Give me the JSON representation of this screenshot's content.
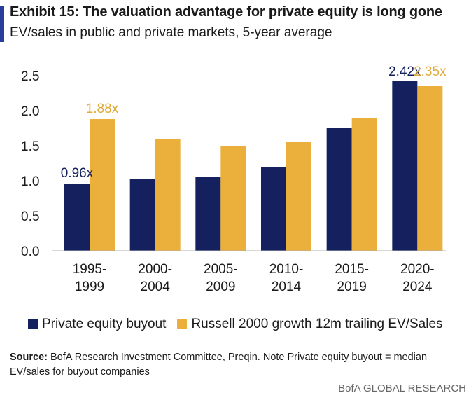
{
  "header": {
    "title": "Exhibit 15: The valuation advantage for private equity is long gone",
    "subtitle": "EV/sales in public and private markets, 5-year average"
  },
  "colors": {
    "accent": "#2b3d9b",
    "private_equity": "#14215e",
    "russell": "#ebb03b",
    "label_pe": "#14215e",
    "label_russell": "#e0a93a"
  },
  "chart_data": {
    "type": "bar",
    "categories": [
      [
        "1995-",
        "1999"
      ],
      [
        "2000-",
        "2004"
      ],
      [
        "2005-",
        "2009"
      ],
      [
        "2010-",
        "2014"
      ],
      [
        "2015-",
        "2019"
      ],
      [
        "2020-",
        "2024"
      ]
    ],
    "series": [
      {
        "name": "Private equity buyout",
        "values": [
          0.96,
          1.03,
          1.05,
          1.19,
          1.75,
          2.42
        ]
      },
      {
        "name": "Russell 2000 growth 12m trailing EV/Sales",
        "values": [
          1.88,
          1.6,
          1.5,
          1.56,
          1.9,
          2.35
        ]
      }
    ],
    "data_labels": [
      {
        "series": 0,
        "index": 0,
        "text": "0.96x"
      },
      {
        "series": 1,
        "index": 0,
        "text": "1.88x"
      },
      {
        "series": 0,
        "index": 5,
        "text": "2.42x"
      },
      {
        "series": 1,
        "index": 5,
        "text": "2.35x"
      }
    ],
    "ylim": [
      0,
      2.5
    ],
    "yticks": [
      "0.0",
      "0.5",
      "1.0",
      "1.5",
      "2.0",
      "2.5"
    ],
    "grid": false,
    "legend_position": "bottom"
  },
  "legend": {
    "pe_label": "Private equity buyout",
    "russell_label": "Russell 2000 growth 12m trailing EV/Sales"
  },
  "footer": {
    "source_label": "Source:",
    "source_text": " BofA Research Investment Committee, Preqin. Note Private equity buyout = median EV/sales for buyout companies",
    "brand": "BofA GLOBAL RESEARCH"
  }
}
